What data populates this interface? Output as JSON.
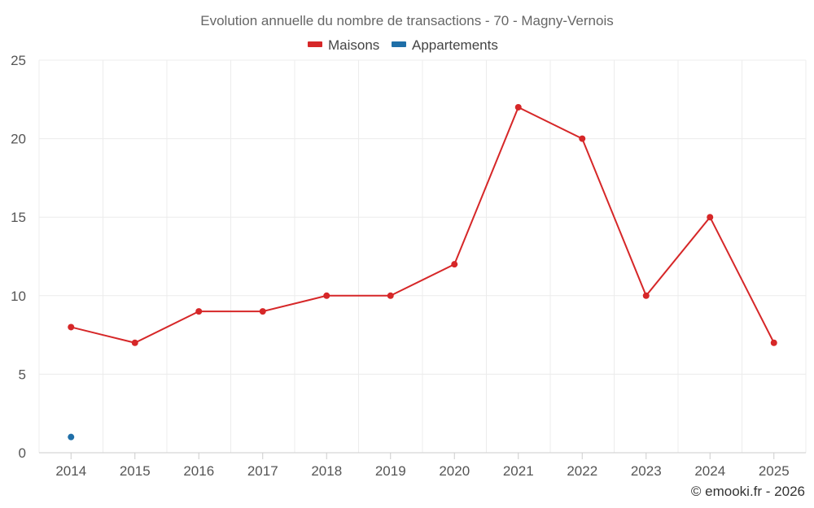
{
  "chart_data": {
    "type": "line",
    "title": "Evolution annuelle du nombre de transactions - 70 - Magny-Vernois",
    "categories": [
      "2014",
      "2015",
      "2016",
      "2017",
      "2018",
      "2019",
      "2020",
      "2021",
      "2022",
      "2023",
      "2024",
      "2025"
    ],
    "series": [
      {
        "name": "Maisons",
        "color": "#d62728",
        "values": [
          8,
          7,
          9,
          9,
          10,
          10,
          12,
          22,
          20,
          10,
          15,
          7
        ]
      },
      {
        "name": "Appartements",
        "color": "#1f6fa8",
        "values": [
          1,
          null,
          null,
          null,
          null,
          null,
          null,
          null,
          null,
          null,
          null,
          null
        ]
      }
    ],
    "ylim": [
      0,
      25
    ],
    "yticks": [
      0,
      5,
      10,
      15,
      20,
      25
    ],
    "xlabel": "",
    "ylabel": "",
    "grid": true,
    "legend": "top-center"
  },
  "credit": "© emooki.fr - 2026"
}
